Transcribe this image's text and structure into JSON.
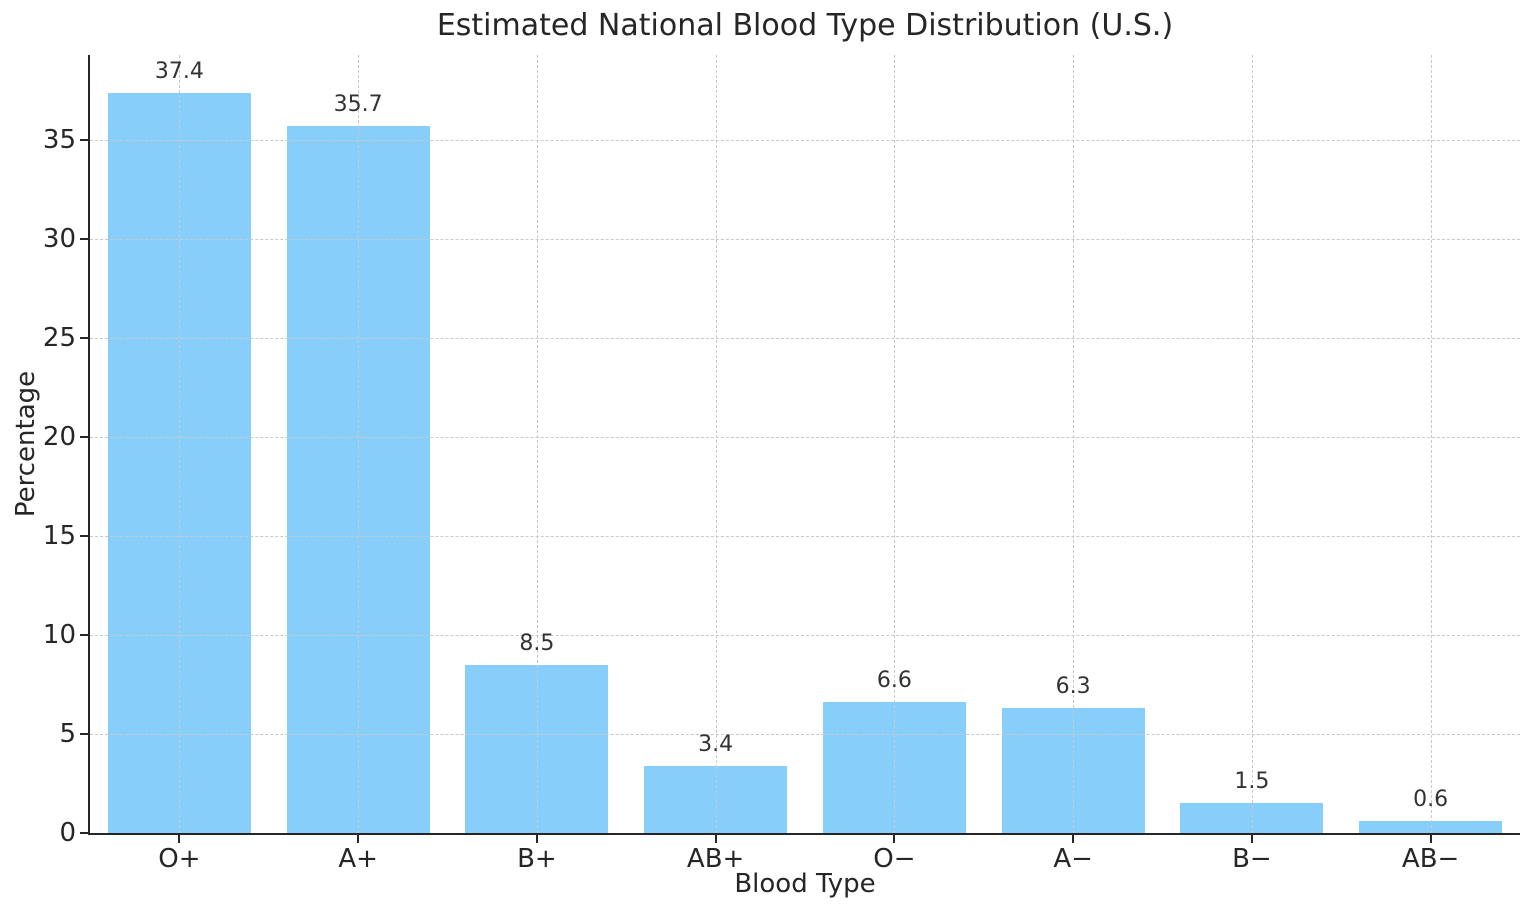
{
  "chart_data": {
    "type": "bar",
    "title": "Estimated National Blood Type Distribution (U.S.)",
    "xlabel": "Blood Type",
    "ylabel": "Percentage",
    "categories": [
      "O+",
      "A+",
      "B+",
      "AB+",
      "O−",
      "A−",
      "B−",
      "AB−"
    ],
    "values": [
      37.4,
      35.7,
      8.5,
      3.4,
      6.6,
      6.3,
      1.5,
      0.6
    ],
    "value_labels": [
      "37.4",
      "35.7",
      "8.5",
      "3.4",
      "6.6",
      "6.3",
      "1.5",
      "0.6"
    ],
    "yticks": [
      0,
      5,
      10,
      15,
      20,
      25,
      30,
      35
    ],
    "ylim": [
      0,
      39.3
    ],
    "grid": "dashed-both-axes-over-bars",
    "legend_position": "none",
    "colors": {
      "bar": "#87CEFA",
      "grid": "#c9c9c9",
      "axis": "#262626",
      "text": "#262626",
      "value_label": "#333333",
      "background": "#ffffff"
    }
  }
}
